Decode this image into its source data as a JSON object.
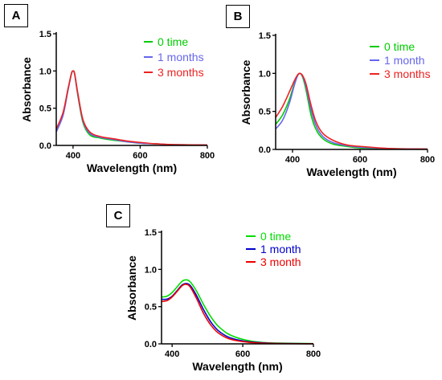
{
  "chart_data": [
    {
      "type": "line",
      "panel_label": "A",
      "xlabel": "Wavelength (nm)",
      "ylabel": "Absorbance",
      "xlim": [
        350,
        800
      ],
      "ylim": [
        0,
        1.5
      ],
      "x_ticks": [
        "400",
        "600",
        "800"
      ],
      "y_ticks": [
        "0.0",
        "0.5",
        "1.0",
        "1.5"
      ],
      "legend_position": "top-right",
      "series": [
        {
          "name": "0 time",
          "color": "#00cc00",
          "x": [
            350,
            370,
            385,
            395,
            400,
            405,
            415,
            430,
            450,
            480,
            520,
            560,
            600,
            650,
            700,
            800
          ],
          "y": [
            0.2,
            0.42,
            0.75,
            0.96,
            1.0,
            0.95,
            0.65,
            0.3,
            0.14,
            0.1,
            0.07,
            0.05,
            0.03,
            0.02,
            0.01,
            0.005
          ]
        },
        {
          "name": "1 months",
          "color": "#6666ee",
          "x": [
            350,
            370,
            385,
            395,
            400,
            405,
            415,
            430,
            450,
            480,
            520,
            560,
            600,
            650,
            700,
            800
          ],
          "y": [
            0.18,
            0.4,
            0.74,
            0.96,
            1.0,
            0.95,
            0.66,
            0.32,
            0.16,
            0.11,
            0.08,
            0.05,
            0.03,
            0.02,
            0.01,
            0.005
          ]
        },
        {
          "name": "3 months",
          "color": "#ee2222",
          "x": [
            350,
            370,
            385,
            395,
            400,
            405,
            415,
            430,
            450,
            480,
            520,
            560,
            600,
            650,
            700,
            800
          ],
          "y": [
            0.22,
            0.44,
            0.76,
            0.96,
            1.0,
            0.96,
            0.68,
            0.34,
            0.18,
            0.12,
            0.09,
            0.06,
            0.04,
            0.02,
            0.01,
            0.005
          ]
        }
      ]
    },
    {
      "type": "line",
      "panel_label": "B",
      "xlabel": "Wavelength (nm)",
      "ylabel": "Absorbance",
      "xlim": [
        350,
        800
      ],
      "ylim": [
        0,
        1.5
      ],
      "x_ticks": [
        "400",
        "600",
        "800"
      ],
      "y_ticks": [
        "0.0",
        "0.5",
        "1.0",
        "1.5"
      ],
      "legend_position": "top-right",
      "series": [
        {
          "name": "0 time",
          "color": "#00cc00",
          "x": [
            350,
            370,
            390,
            405,
            415,
            422,
            430,
            440,
            455,
            470,
            490,
            520,
            560,
            600,
            700,
            800
          ],
          "y": [
            0.33,
            0.45,
            0.65,
            0.86,
            0.97,
            1.0,
            0.95,
            0.78,
            0.45,
            0.26,
            0.14,
            0.07,
            0.04,
            0.02,
            0.01,
            0.005
          ]
        },
        {
          "name": "1 month",
          "color": "#6666ee",
          "x": [
            350,
            370,
            390,
            405,
            415,
            422,
            430,
            440,
            455,
            470,
            490,
            520,
            560,
            600,
            700,
            800
          ],
          "y": [
            0.27,
            0.38,
            0.6,
            0.84,
            0.97,
            1.0,
            0.96,
            0.82,
            0.52,
            0.31,
            0.17,
            0.09,
            0.05,
            0.03,
            0.01,
            0.005
          ]
        },
        {
          "name": "3 months",
          "color": "#ee2222",
          "x": [
            350,
            370,
            390,
            405,
            415,
            422,
            430,
            440,
            455,
            470,
            490,
            520,
            560,
            600,
            700,
            800
          ],
          "y": [
            0.42,
            0.56,
            0.75,
            0.9,
            0.98,
            1.0,
            0.97,
            0.86,
            0.58,
            0.36,
            0.21,
            0.12,
            0.06,
            0.04,
            0.01,
            0.005
          ]
        }
      ]
    },
    {
      "type": "line",
      "panel_label": "C",
      "xlabel": "Wavelength (nm)",
      "ylabel": "Absorbance",
      "xlim": [
        370,
        800
      ],
      "ylim": [
        0,
        1.5
      ],
      "x_ticks": [
        "400",
        "600",
        "800"
      ],
      "y_ticks": [
        "0.0",
        "0.5",
        "1.0",
        "1.5"
      ],
      "legend_position": "top-right",
      "series": [
        {
          "name": "0 time",
          "color": "#00dd00",
          "x": [
            370,
            385,
            400,
            415,
            428,
            440,
            452,
            470,
            490,
            510,
            530,
            560,
            600,
            650,
            700,
            800
          ],
          "y": [
            0.63,
            0.64,
            0.69,
            0.77,
            0.84,
            0.86,
            0.83,
            0.7,
            0.52,
            0.36,
            0.24,
            0.13,
            0.06,
            0.02,
            0.01,
            0.003
          ]
        },
        {
          "name": "1 month",
          "color": "#0000cc",
          "x": [
            370,
            385,
            400,
            415,
            428,
            440,
            452,
            470,
            490,
            510,
            530,
            560,
            600,
            650,
            700,
            800
          ],
          "y": [
            0.6,
            0.6,
            0.64,
            0.72,
            0.79,
            0.81,
            0.78,
            0.64,
            0.45,
            0.29,
            0.18,
            0.09,
            0.04,
            0.015,
            0.005,
            0.002
          ]
        },
        {
          "name": "3 month",
          "color": "#ee0000",
          "x": [
            370,
            385,
            400,
            415,
            428,
            440,
            452,
            470,
            490,
            510,
            530,
            560,
            600,
            650,
            700,
            800
          ],
          "y": [
            0.57,
            0.58,
            0.63,
            0.71,
            0.78,
            0.8,
            0.76,
            0.6,
            0.4,
            0.25,
            0.15,
            0.07,
            0.03,
            0.01,
            0.004,
            0.002
          ]
        }
      ]
    }
  ]
}
